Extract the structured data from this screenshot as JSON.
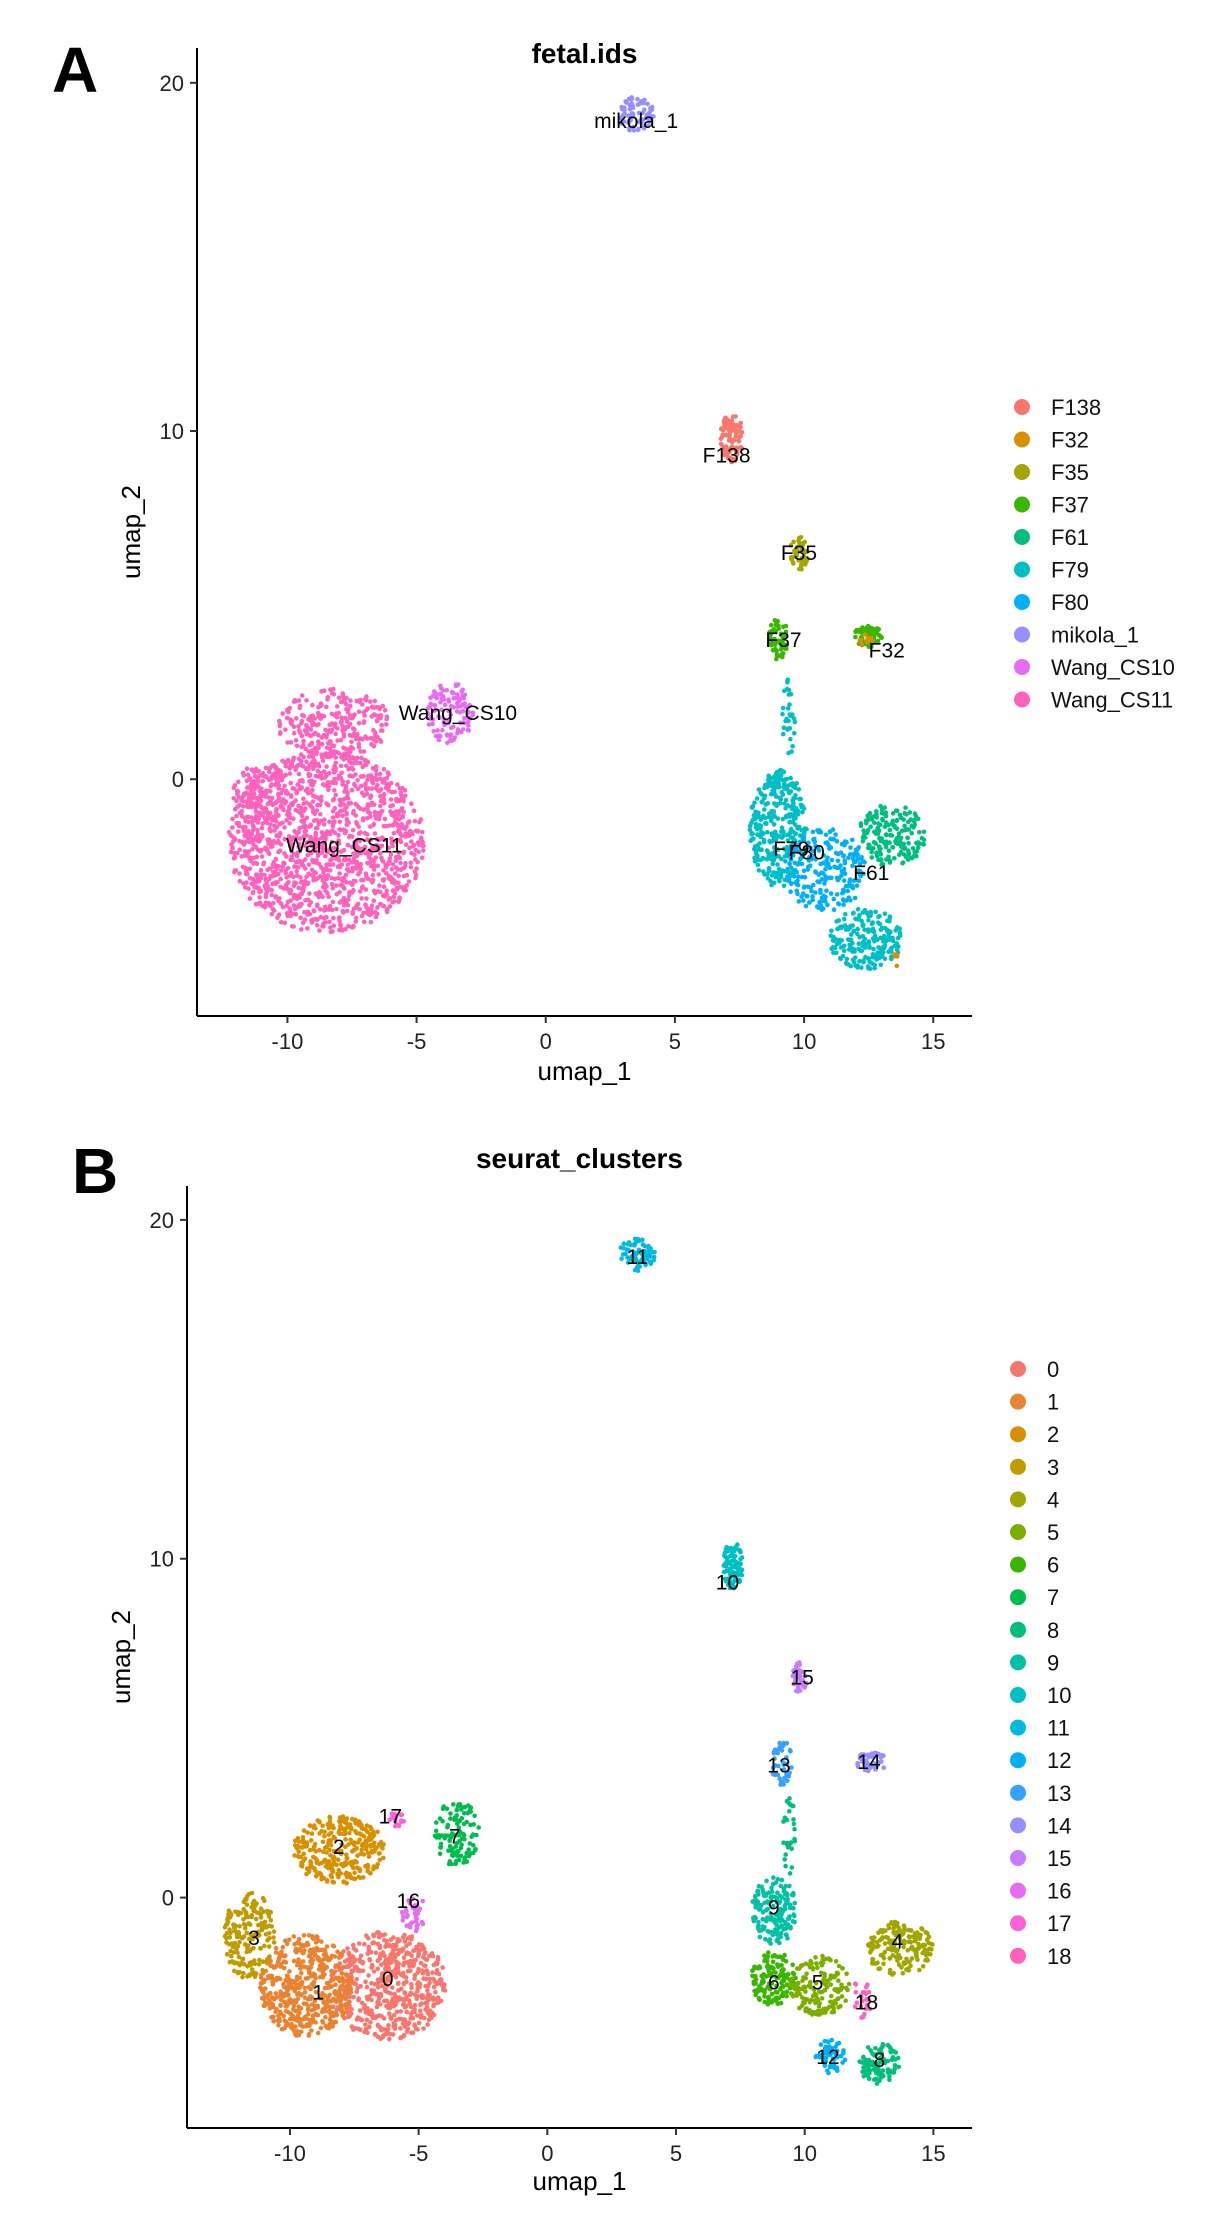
{
  "chart_data": [
    {
      "panel_label": "A",
      "type": "scatter",
      "title": "fetal.ids",
      "xlabel": "umap_1",
      "ylabel": "umap_2",
      "xlim": [
        -13.5,
        16.5
      ],
      "ylim": [
        -6.8,
        21
      ],
      "xticks": [
        -10,
        -5,
        0,
        5,
        10,
        15
      ],
      "yticks": [
        0,
        10,
        20
      ],
      "grid": false,
      "legend_position": "right",
      "series": [
        {
          "name": "F138",
          "color": "#F8766D"
        },
        {
          "name": "F32",
          "color": "#D89000"
        },
        {
          "name": "F35",
          "color": "#A3A500"
        },
        {
          "name": "F37",
          "color": "#39B600"
        },
        {
          "name": "F61",
          "color": "#00BF7D"
        },
        {
          "name": "F79",
          "color": "#00BFC4"
        },
        {
          "name": "F80",
          "color": "#00B0F6"
        },
        {
          "name": "mikola_1",
          "color": "#9590FF"
        },
        {
          "name": "Wang_CS10",
          "color": "#E76BF3"
        },
        {
          "name": "Wang_CS11",
          "color": "#FF62BC"
        }
      ],
      "clusters": [
        {
          "series": 9,
          "cx": -8.5,
          "cy": -1.8,
          "rx": 3.8,
          "ry": 2.6,
          "n": 1400
        },
        {
          "series": 9,
          "cx": -8.2,
          "cy": 1.6,
          "rx": 2.2,
          "ry": 1.0,
          "n": 260
        },
        {
          "series": 9,
          "cx": -11.0,
          "cy": -0.4,
          "rx": 1.1,
          "ry": 0.9,
          "n": 120
        },
        {
          "series": 8,
          "cx": -3.7,
          "cy": 1.9,
          "rx": 0.9,
          "ry": 0.9,
          "n": 110
        },
        {
          "series": 7,
          "cx": 3.5,
          "cy": 19.1,
          "rx": 0.7,
          "ry": 0.5,
          "n": 70
        },
        {
          "series": 0,
          "cx": 7.2,
          "cy": 9.8,
          "rx": 0.45,
          "ry": 0.7,
          "n": 90
        },
        {
          "series": 2,
          "cx": 9.8,
          "cy": 6.5,
          "rx": 0.35,
          "ry": 0.5,
          "n": 45
        },
        {
          "series": 3,
          "cx": 9.0,
          "cy": 4.0,
          "rx": 0.4,
          "ry": 0.6,
          "n": 55
        },
        {
          "series": 3,
          "cx": 12.5,
          "cy": 4.1,
          "rx": 0.6,
          "ry": 0.3,
          "n": 55
        },
        {
          "series": 1,
          "cx": 12.4,
          "cy": 4.0,
          "rx": 0.3,
          "ry": 0.2,
          "n": 10
        },
        {
          "series": 5,
          "cx": 9.0,
          "cy": -1.4,
          "rx": 1.1,
          "ry": 1.7,
          "n": 320
        },
        {
          "series": 6,
          "cx": 10.8,
          "cy": -2.6,
          "rx": 1.6,
          "ry": 1.2,
          "n": 220
        },
        {
          "series": 4,
          "cx": 13.4,
          "cy": -1.6,
          "rx": 1.3,
          "ry": 0.9,
          "n": 180
        },
        {
          "series": 5,
          "cx": 12.4,
          "cy": -4.6,
          "rx": 1.4,
          "ry": 0.9,
          "n": 200
        },
        {
          "series": 5,
          "cx": 9.4,
          "cy": 1.8,
          "rx": 0.25,
          "ry": 1.2,
          "n": 30
        },
        {
          "series": 1,
          "cx": 13.6,
          "cy": -5.2,
          "rx": 0.2,
          "ry": 0.2,
          "n": 6
        }
      ],
      "labels": [
        {
          "text": "mikola_1",
          "x": 3.5,
          "y": 18.9
        },
        {
          "text": "F138",
          "x": 7.0,
          "y": 9.3
        },
        {
          "text": "F35",
          "x": 9.8,
          "y": 6.5
        },
        {
          "text": "F37",
          "x": 9.2,
          "y": 4.0
        },
        {
          "text": "F32",
          "x": 13.2,
          "y": 3.7
        },
        {
          "text": "Wang_CS10",
          "x": -3.4,
          "y": 1.9
        },
        {
          "text": "Wang_CS11",
          "x": -7.8,
          "y": -1.9
        },
        {
          "text": "F79",
          "x": 9.5,
          "y": -2.0
        },
        {
          "text": "F80",
          "x": 10.1,
          "y": -2.1
        },
        {
          "text": "F61",
          "x": 12.6,
          "y": -2.7
        }
      ]
    },
    {
      "panel_label": "B",
      "type": "scatter",
      "title": "seurat_clusters",
      "xlabel": "umap_1",
      "ylabel": "umap_2",
      "xlim": [
        -14,
        16.5
      ],
      "ylim": [
        -6.8,
        21
      ],
      "xticks": [
        -10,
        -5,
        0,
        5,
        10,
        15
      ],
      "yticks": [
        0,
        10,
        20
      ],
      "grid": false,
      "legend_position": "right",
      "series": [
        {
          "name": "0",
          "color": "#F8766D"
        },
        {
          "name": "1",
          "color": "#EA8331"
        },
        {
          "name": "2",
          "color": "#D89000"
        },
        {
          "name": "3",
          "color": "#C09B00"
        },
        {
          "name": "4",
          "color": "#A3A500"
        },
        {
          "name": "5",
          "color": "#7CAE00"
        },
        {
          "name": "6",
          "color": "#39B600"
        },
        {
          "name": "7",
          "color": "#00BB4E"
        },
        {
          "name": "8",
          "color": "#00BF7D"
        },
        {
          "name": "9",
          "color": "#00C1A3"
        },
        {
          "name": "10",
          "color": "#00BFC4"
        },
        {
          "name": "11",
          "color": "#00BAE0"
        },
        {
          "name": "12",
          "color": "#00B0F6"
        },
        {
          "name": "13",
          "color": "#35A2FF"
        },
        {
          "name": "14",
          "color": "#9590FF"
        },
        {
          "name": "15",
          "color": "#C77CFF"
        },
        {
          "name": "16",
          "color": "#E76BF3"
        },
        {
          "name": "17",
          "color": "#FA62DB"
        },
        {
          "name": "18",
          "color": "#FF62BC"
        }
      ],
      "clusters": [
        {
          "series": 0,
          "cx": -6.2,
          "cy": -2.6,
          "rx": 2.3,
          "ry": 1.6,
          "n": 560
        },
        {
          "series": 1,
          "cx": -9.4,
          "cy": -2.6,
          "rx": 1.8,
          "ry": 1.5,
          "n": 480
        },
        {
          "series": 2,
          "cx": -8.1,
          "cy": 1.4,
          "rx": 1.8,
          "ry": 1.0,
          "n": 300
        },
        {
          "series": 3,
          "cx": -11.6,
          "cy": -1.1,
          "rx": 1.0,
          "ry": 1.3,
          "n": 180
        },
        {
          "series": 16,
          "cx": -5.2,
          "cy": -0.4,
          "rx": 0.5,
          "ry": 0.6,
          "n": 35
        },
        {
          "series": 17,
          "cx": -5.9,
          "cy": 2.3,
          "rx": 0.4,
          "ry": 0.2,
          "n": 18
        },
        {
          "series": 7,
          "cx": -3.5,
          "cy": 1.9,
          "rx": 0.9,
          "ry": 1.0,
          "n": 110
        },
        {
          "series": 11,
          "cx": 3.5,
          "cy": 19.0,
          "rx": 0.7,
          "ry": 0.5,
          "n": 75
        },
        {
          "series": 10,
          "cx": 7.2,
          "cy": 9.8,
          "rx": 0.4,
          "ry": 0.7,
          "n": 90
        },
        {
          "series": 15,
          "cx": 9.8,
          "cy": 6.5,
          "rx": 0.3,
          "ry": 0.45,
          "n": 35
        },
        {
          "series": 13,
          "cx": 9.1,
          "cy": 4.0,
          "rx": 0.4,
          "ry": 0.7,
          "n": 45
        },
        {
          "series": 14,
          "cx": 12.6,
          "cy": 4.0,
          "rx": 0.6,
          "ry": 0.3,
          "n": 50
        },
        {
          "series": 9,
          "cx": 8.8,
          "cy": -0.4,
          "rx": 0.9,
          "ry": 1.0,
          "n": 160
        },
        {
          "series": 6,
          "cx": 8.8,
          "cy": -2.4,
          "rx": 0.9,
          "ry": 0.8,
          "n": 140
        },
        {
          "series": 5,
          "cx": 10.6,
          "cy": -2.6,
          "rx": 1.2,
          "ry": 0.9,
          "n": 150
        },
        {
          "series": 4,
          "cx": 13.7,
          "cy": -1.5,
          "rx": 1.3,
          "ry": 0.8,
          "n": 170
        },
        {
          "series": 18,
          "cx": 12.2,
          "cy": -3.0,
          "rx": 0.4,
          "ry": 0.6,
          "n": 25
        },
        {
          "series": 12,
          "cx": 11.0,
          "cy": -4.7,
          "rx": 0.6,
          "ry": 0.5,
          "n": 60
        },
        {
          "series": 8,
          "cx": 12.9,
          "cy": -4.9,
          "rx": 0.8,
          "ry": 0.6,
          "n": 90
        },
        {
          "series": 8,
          "cx": 9.4,
          "cy": 1.8,
          "rx": 0.25,
          "ry": 1.2,
          "n": 30
        }
      ],
      "labels": [
        {
          "text": "11",
          "x": 3.5,
          "y": 18.9
        },
        {
          "text": "10",
          "x": 7.0,
          "y": 9.3
        },
        {
          "text": "15",
          "x": 9.9,
          "y": 6.5
        },
        {
          "text": "13",
          "x": 9.0,
          "y": 3.9
        },
        {
          "text": "14",
          "x": 12.5,
          "y": 4.0
        },
        {
          "text": "17",
          "x": -6.1,
          "y": 2.4
        },
        {
          "text": "2",
          "x": -8.1,
          "y": 1.5
        },
        {
          "text": "7",
          "x": -3.6,
          "y": 1.8
        },
        {
          "text": "16",
          "x": -5.4,
          "y": -0.1
        },
        {
          "text": "3",
          "x": -11.4,
          "y": -1.2
        },
        {
          "text": "0",
          "x": -6.2,
          "y": -2.4
        },
        {
          "text": "1",
          "x": -8.9,
          "y": -2.8
        },
        {
          "text": "9",
          "x": 8.8,
          "y": -0.3
        },
        {
          "text": "4",
          "x": 13.6,
          "y": -1.3
        },
        {
          "text": "6",
          "x": 8.8,
          "y": -2.5
        },
        {
          "text": "5",
          "x": 10.5,
          "y": -2.5
        },
        {
          "text": "18",
          "x": 12.4,
          "y": -3.1
        },
        {
          "text": "12",
          "x": 10.9,
          "y": -4.7
        },
        {
          "text": "8",
          "x": 12.9,
          "y": -4.8
        }
      ]
    }
  ]
}
